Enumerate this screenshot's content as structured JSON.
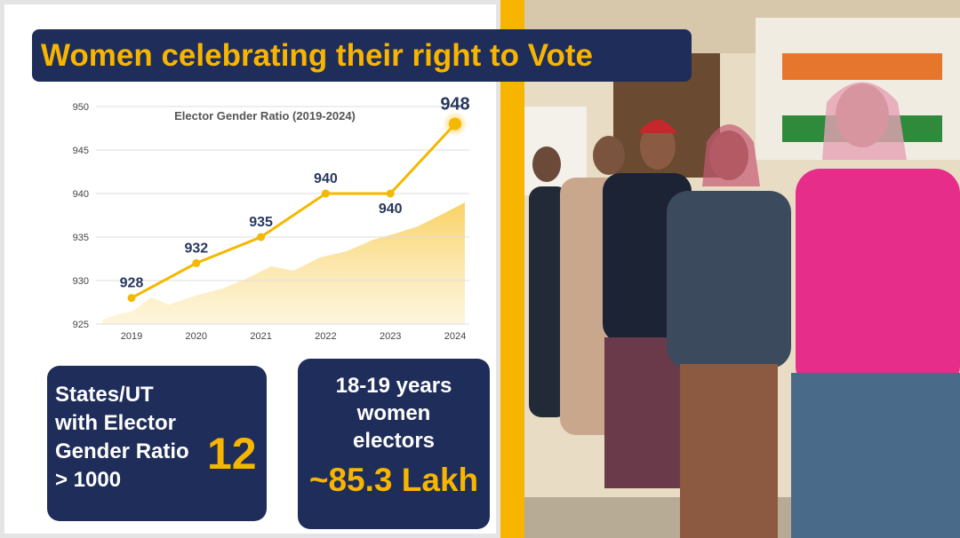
{
  "header": {
    "title": "Women celebrating their right to Vote"
  },
  "chart_data": {
    "type": "line",
    "title": "Elector Gender Ratio (2019-2024)",
    "categories": [
      "2019",
      "2020",
      "2021",
      "2022",
      "2023",
      "2024"
    ],
    "values": [
      928,
      932,
      935,
      940,
      940,
      948
    ],
    "color": "#f5b800",
    "ylim": [
      925,
      950
    ],
    "yticks": [
      925,
      930,
      935,
      940,
      945,
      950
    ],
    "grid": true
  },
  "cards": [
    {
      "label": "States/UT with Elector Gender Ratio > 1000",
      "value": "12"
    },
    {
      "label": "18-19 years women electors",
      "value": "~85.3 Lakh"
    }
  ]
}
